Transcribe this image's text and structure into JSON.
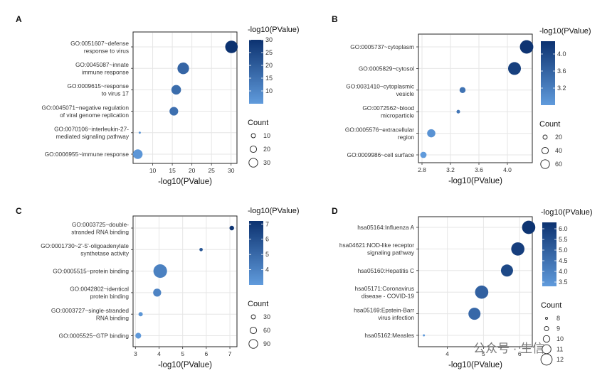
{
  "watermark": "公众号 · 生信",
  "chart_data": [
    {
      "panel": "A",
      "type": "scatter",
      "xlabel": "-log10(PValue)",
      "xlim": [
        5,
        31.5
      ],
      "xticks": [
        10,
        15,
        20,
        25,
        30
      ],
      "color_legend": {
        "title": "-log10(PValue)",
        "range": [
          5,
          30
        ],
        "ticks": [
          10,
          15,
          20,
          25,
          30
        ]
      },
      "size_legend": {
        "title": "Count",
        "values": [
          10,
          20,
          30
        ],
        "size_range": [
          5,
          34
        ]
      },
      "terms": [
        {
          "label": [
            "GO:0051607~defense",
            "response to virus"
          ],
          "x": 30.1,
          "count": 28
        },
        {
          "label": [
            "GO:0045087~innate",
            "immune response"
          ],
          "x": 17.8,
          "count": 24
        },
        {
          "label": [
            "GO:0009615~response",
            "to virus   17"
          ],
          "x": 16.0,
          "count": 17
        },
        {
          "label": [
            "GO:0045071~negative regulation",
            "of viral genome replication"
          ],
          "x": 15.4,
          "count": 14
        },
        {
          "label": [
            "GO:0070106~interleukin-27-",
            "mediated signaling pathway"
          ],
          "x": 6.7,
          "count": 5
        },
        {
          "label": [
            "GO:0006955~immune response"
          ],
          "x": 6.2,
          "count": 17
        }
      ]
    },
    {
      "panel": "B",
      "type": "scatter",
      "xlabel": "-log10(PValue)",
      "xlim": [
        2.75,
        4.35
      ],
      "xticks": [
        2.8,
        3.2,
        3.6,
        4.0
      ],
      "tick_labels": [
        "2.8",
        "3.2",
        "3.6",
        "4.0"
      ],
      "color_legend": {
        "title": "-log10(PValue)",
        "range": [
          2.8,
          4.3
        ],
        "ticks": [
          3.2,
          3.6,
          4.0
        ],
        "tick_labels": [
          "3.2",
          "3.6",
          "4.0"
        ]
      },
      "size_legend": {
        "title": "Count",
        "values": [
          20,
          40,
          60
        ],
        "size_range": [
          5,
          68
        ]
      },
      "terms": [
        {
          "label": [
            "GO:0005737~cytoplasm"
          ],
          "x": 4.27,
          "count": 64
        },
        {
          "label": [
            "GO:0005829~cytosol"
          ],
          "x": 4.1,
          "count": 58
        },
        {
          "label": [
            "GO:0031410~cytoplasmic",
            "vesicle"
          ],
          "x": 3.37,
          "count": 12
        },
        {
          "label": [
            "GO:0072562~blood",
            "microparticle"
          ],
          "x": 3.31,
          "count": 6
        },
        {
          "label": [
            "GO:0005576~extracellular",
            "region"
          ],
          "x": 2.93,
          "count": 22
        },
        {
          "label": [
            "GO:0009986~cell surface"
          ],
          "x": 2.82,
          "count": 13
        }
      ]
    },
    {
      "panel": "C",
      "type": "scatter",
      "xlabel": "-log10(PValue)",
      "xlim": [
        2.9,
        7.3
      ],
      "xticks": [
        3,
        4,
        5,
        6,
        7
      ],
      "color_legend": {
        "title": "-log10(PValue)",
        "range": [
          3,
          7.2
        ],
        "ticks": [
          4,
          5,
          6,
          7
        ]
      },
      "size_legend": {
        "title": "Count",
        "values": [
          30,
          60,
          90
        ],
        "size_range": [
          5,
          95
        ]
      },
      "terms": [
        {
          "label": [
            "GO:0003725~double-",
            "stranded RNA binding"
          ],
          "x": 7.08,
          "count": 9
        },
        {
          "label": [
            "GO:0001730~2'-5'-oligoadenylate",
            "synthetase activity"
          ],
          "x": 5.78,
          "count": 6
        },
        {
          "label": [
            "GO:0005515~protein binding"
          ],
          "x": 4.05,
          "count": 92
        },
        {
          "label": [
            "GO:0042802~identical",
            "protein binding"
          ],
          "x": 3.92,
          "count": 28
        },
        {
          "label": [
            "GO:0003727~single-stranded",
            "RNA binding"
          ],
          "x": 3.22,
          "count": 8
        },
        {
          "label": [
            "GO:0005525~GTP binding"
          ],
          "x": 3.12,
          "count": 14
        }
      ]
    },
    {
      "panel": "D",
      "type": "scatter",
      "xlabel": "-log10(PValue)",
      "xlim": [
        3.2,
        6.35
      ],
      "xticks": [
        4,
        5,
        6
      ],
      "color_legend": {
        "title": "-log10(PValue)",
        "range": [
          3.3,
          6.3
        ],
        "ticks": [
          3.5,
          4.0,
          4.5,
          5.0,
          5.5,
          6.0
        ],
        "tick_labels": [
          "3.5",
          "4.0",
          "4.5",
          "5.0",
          "5.5",
          "6.0"
        ]
      },
      "size_legend": {
        "title": "Count",
        "values": [
          8,
          9,
          10,
          11,
          12
        ],
        "size_range": [
          7,
          12.5
        ]
      },
      "terms": [
        {
          "label": [
            "hsa05164:Influenza A"
          ],
          "x": 6.25,
          "count": 12
        },
        {
          "label": [
            "hsa04621:NOD-like receptor",
            "signaling pathway"
          ],
          "x": 5.95,
          "count": 12
        },
        {
          "label": [
            "hsa05160:Hepatitis C"
          ],
          "x": 5.65,
          "count": 11
        },
        {
          "label": [
            "hsa05171:Coronavirus",
            "disease - COVID-19"
          ],
          "x": 4.95,
          "count": 12
        },
        {
          "label": [
            "hsa05169:Epstein-Barr",
            "virus infection"
          ],
          "x": 4.75,
          "count": 11
        },
        {
          "label": [
            "hsa05162:Measles"
          ],
          "x": 3.35,
          "count": 7
        }
      ]
    }
  ]
}
